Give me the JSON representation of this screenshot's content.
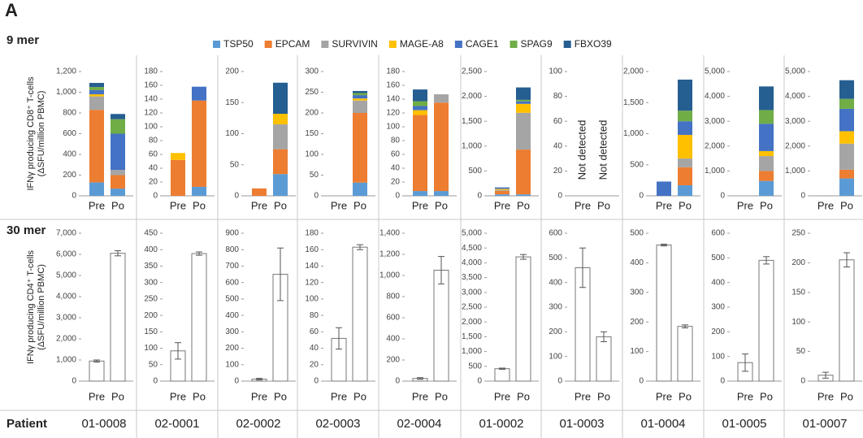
{
  "panel_label": "A",
  "rows": [
    "9 mer",
    "30 mer"
  ],
  "patient_label": "Patient",
  "patients": [
    "01-0008",
    "02-0001",
    "02-0002",
    "02-0003",
    "02-0004",
    "01-0002",
    "01-0003",
    "01-0004",
    "01-0005",
    "01-0007"
  ],
  "chart_data": [
    {
      "type": "stacked_bar",
      "y_label": [
        "IFNγ producing CD8⁺ T-cells",
        "(ΔSFU/million PBMC)"
      ],
      "categories": [
        "Pre",
        "Po"
      ],
      "ylim": [
        0,
        1200
      ],
      "yticks": [
        0,
        200,
        400,
        600,
        800,
        {
          "value": 1000,
          "label": "1,000"
        },
        {
          "value": 1200,
          "label": "1,200"
        }
      ],
      "series": [
        {
          "name": "TSP50",
          "color": "#5b9bd5",
          "values": [
            130,
            70
          ]
        },
        {
          "name": "EPCAM",
          "color": "#ed7d31",
          "values": [
            700,
            130
          ]
        },
        {
          "name": "SURVIVIN",
          "color": "#a5a5a5",
          "values": [
            130,
            50
          ]
        },
        {
          "name": "MAGE-A8",
          "color": "#ffc000",
          "values": [
            20,
            0
          ]
        },
        {
          "name": "CAGE1",
          "color": "#4472c4",
          "values": [
            40,
            350
          ]
        },
        {
          "name": "SPAG9",
          "color": "#70ad47",
          "values": [
            30,
            140
          ]
        },
        {
          "name": "FBXO39",
          "color": "#255e91",
          "values": [
            40,
            50
          ]
        }
      ]
    },
    {
      "type": "stacked_bar",
      "categories": [
        "Pre",
        "Po"
      ],
      "ylim": [
        0,
        180
      ],
      "yticks": [
        0,
        20,
        40,
        60,
        80,
        100,
        120,
        140,
        160,
        180
      ],
      "series": [
        {
          "values": [
            0,
            13
          ]
        },
        {
          "values": [
            52,
            125
          ]
        },
        {
          "values": [
            0,
            0
          ]
        },
        {
          "values": [
            10,
            0
          ]
        },
        {
          "values": [
            0,
            20
          ]
        },
        {
          "values": [
            0,
            0
          ]
        },
        {
          "values": [
            0,
            0
          ]
        }
      ]
    },
    {
      "type": "stacked_bar",
      "categories": [
        "Pre",
        "Po"
      ],
      "ylim": [
        0,
        200
      ],
      "yticks": [
        0,
        50,
        100,
        150,
        200
      ],
      "series": [
        {
          "values": [
            0,
            35
          ]
        },
        {
          "values": [
            12,
            40
          ]
        },
        {
          "values": [
            0,
            40
          ]
        },
        {
          "values": [
            0,
            17
          ]
        },
        {
          "values": [
            0,
            0
          ]
        },
        {
          "values": [
            0,
            0
          ]
        },
        {
          "values": [
            0,
            50
          ]
        }
      ]
    },
    {
      "type": "stacked_bar",
      "categories": [
        "Pre",
        "Po"
      ],
      "ylim": [
        0,
        300
      ],
      "yticks": [
        0,
        50,
        100,
        150,
        200,
        250,
        300
      ],
      "series": [
        {
          "values": [
            0,
            32
          ]
        },
        {
          "values": [
            0,
            168
          ]
        },
        {
          "values": [
            0,
            30
          ]
        },
        {
          "values": [
            0,
            5
          ]
        },
        {
          "values": [
            0,
            8
          ]
        },
        {
          "values": [
            0,
            5
          ]
        },
        {
          "values": [
            0,
            5
          ]
        }
      ]
    },
    {
      "type": "stacked_bar",
      "categories": [
        "Pre",
        "Po"
      ],
      "ylim": [
        0,
        180
      ],
      "yticks": [
        0,
        20,
        40,
        60,
        80,
        100,
        120,
        140,
        160,
        180
      ],
      "series": [
        {
          "values": [
            7,
            7
          ]
        },
        {
          "values": [
            110,
            128
          ]
        },
        {
          "values": [
            0,
            12
          ]
        },
        {
          "values": [
            7,
            0
          ]
        },
        {
          "values": [
            6,
            0
          ]
        },
        {
          "values": [
            7,
            0
          ]
        },
        {
          "values": [
            17,
            0
          ]
        }
      ]
    },
    {
      "type": "stacked_bar",
      "categories": [
        "Pre",
        "Po"
      ],
      "ylim": [
        0,
        2500
      ],
      "yticks": [
        0,
        500,
        {
          "value": 1000,
          "label": "1,000"
        },
        {
          "value": 1500,
          "label": "1,500"
        },
        {
          "value": 2000,
          "label": "2,000"
        },
        {
          "value": 2500,
          "label": "2,500"
        }
      ],
      "series": [
        {
          "values": [
            30,
            30
          ]
        },
        {
          "values": [
            70,
            900
          ]
        },
        {
          "values": [
            20,
            740
          ]
        },
        {
          "values": [
            20,
            180
          ]
        },
        {
          "values": [
            30,
            50
          ]
        },
        {
          "values": [
            0,
            30
          ]
        },
        {
          "values": [
            0,
            250
          ]
        }
      ]
    },
    {
      "type": "stacked_bar",
      "categories": [
        "Pre",
        "Po"
      ],
      "ylim": [
        0,
        100
      ],
      "yticks": [
        0,
        20,
        40,
        60,
        80,
        100
      ],
      "annotations": [
        "Not detected",
        "Not detected"
      ],
      "series": [
        {
          "values": [
            0,
            0
          ]
        },
        {
          "values": [
            0,
            0
          ]
        },
        {
          "values": [
            0,
            0
          ]
        },
        {
          "values": [
            0,
            0
          ]
        },
        {
          "values": [
            0,
            0
          ]
        },
        {
          "values": [
            0,
            0
          ]
        },
        {
          "values": [
            0,
            0
          ]
        }
      ]
    },
    {
      "type": "stacked_bar",
      "categories": [
        "Pre",
        "Po"
      ],
      "ylim": [
        0,
        2000
      ],
      "yticks": [
        0,
        500,
        {
          "value": 1000,
          "label": "1,000"
        },
        {
          "value": 1500,
          "label": "1,500"
        },
        {
          "value": 2000,
          "label": "2,000"
        }
      ],
      "series": [
        {
          "values": [
            0,
            170
          ]
        },
        {
          "values": [
            0,
            290
          ]
        },
        {
          "values": [
            0,
            140
          ]
        },
        {
          "values": [
            0,
            380
          ]
        },
        {
          "values": [
            230,
            220
          ]
        },
        {
          "values": [
            0,
            170
          ]
        },
        {
          "values": [
            0,
            500
          ]
        }
      ]
    },
    {
      "type": "stacked_bar",
      "categories": [
        "Pre",
        "Po"
      ],
      "ylim": [
        0,
        5000
      ],
      "yticks": [
        0,
        {
          "value": 1000,
          "label": "1,000"
        },
        {
          "value": 2000,
          "label": "2,000"
        },
        {
          "value": 3000,
          "label": "3,000"
        },
        {
          "value": 4000,
          "label": "4,000"
        },
        {
          "value": 5000,
          "label": "5,000"
        }
      ],
      "series": [
        {
          "values": [
            0,
            600
          ]
        },
        {
          "values": [
            0,
            400
          ]
        },
        {
          "values": [
            0,
            600
          ]
        },
        {
          "values": [
            0,
            200
          ]
        },
        {
          "values": [
            0,
            1100
          ]
        },
        {
          "values": [
            0,
            550
          ]
        },
        {
          "values": [
            0,
            950
          ]
        }
      ]
    },
    {
      "type": "stacked_bar",
      "categories": [
        "Pre",
        "Po"
      ],
      "ylim": [
        0,
        5000
      ],
      "yticks": [
        0,
        {
          "value": 1000,
          "label": "1,000"
        },
        {
          "value": 2000,
          "label": "2,000"
        },
        {
          "value": 3000,
          "label": "3,000"
        },
        {
          "value": 4000,
          "label": "4,000"
        },
        {
          "value": 5000,
          "label": "5,000"
        }
      ],
      "series": [
        {
          "values": [
            0,
            700
          ]
        },
        {
          "values": [
            0,
            350
          ]
        },
        {
          "values": [
            20,
            1050
          ]
        },
        {
          "values": [
            0,
            500
          ]
        },
        {
          "values": [
            0,
            900
          ]
        },
        {
          "values": [
            0,
            400
          ]
        },
        {
          "values": [
            0,
            750
          ]
        }
      ]
    },
    {
      "type": "bar_error",
      "y_label": [
        "IFNγ producing CD4⁺ T-cells",
        "(ΔSFU/million PBMC)"
      ],
      "categories": [
        "Pre",
        "Po"
      ],
      "ylim": [
        0,
        7000
      ],
      "yticks": [
        0,
        {
          "value": 1000,
          "label": "1,000"
        },
        {
          "value": 2000,
          "label": "2,000"
        },
        {
          "value": 3000,
          "label": "3,000"
        },
        {
          "value": 4000,
          "label": "4,000"
        },
        {
          "value": 5000,
          "label": "5,000"
        },
        {
          "value": 6000,
          "label": "6,000"
        },
        {
          "value": 7000,
          "label": "7,000"
        }
      ],
      "values": [
        950,
        6050
      ],
      "errors": [
        50,
        120
      ]
    },
    {
      "type": "bar_error",
      "categories": [
        "Pre",
        "Po"
      ],
      "ylim": [
        0,
        450
      ],
      "yticks": [
        0,
        50,
        100,
        150,
        200,
        250,
        300,
        350,
        400,
        450
      ],
      "values": [
        92,
        388
      ],
      "errors": [
        25,
        5
      ]
    },
    {
      "type": "bar_error",
      "categories": [
        "Pre",
        "Po"
      ],
      "ylim": [
        0,
        900
      ],
      "yticks": [
        0,
        100,
        200,
        300,
        400,
        500,
        600,
        700,
        800,
        900
      ],
      "values": [
        12,
        650
      ],
      "errors": [
        5,
        160
      ]
    },
    {
      "type": "bar_error",
      "categories": [
        "Pre",
        "Po"
      ],
      "ylim": [
        0,
        180
      ],
      "yticks": [
        0,
        20,
        40,
        60,
        80,
        100,
        120,
        140,
        160,
        180
      ],
      "values": [
        52,
        163
      ],
      "errors": [
        13,
        3
      ]
    },
    {
      "type": "bar_error",
      "categories": [
        "Pre",
        "Po"
      ],
      "ylim": [
        0,
        1400
      ],
      "yticks": [
        0,
        200,
        400,
        600,
        800,
        {
          "value": 1000,
          "label": "1,000"
        },
        {
          "value": 1200,
          "label": "1,200"
        },
        {
          "value": 1400,
          "label": "1,400"
        }
      ],
      "values": [
        25,
        1050
      ],
      "errors": [
        8,
        130
      ]
    },
    {
      "type": "bar_error",
      "categories": [
        "Pre",
        "Po"
      ],
      "ylim": [
        0,
        5000
      ],
      "yticks": [
        0,
        500,
        {
          "value": 1000,
          "label": "1,000"
        },
        {
          "value": 1500,
          "label": "1,500"
        },
        {
          "value": 2000,
          "label": "2,000"
        },
        {
          "value": 2500,
          "label": "2,500"
        },
        {
          "value": 3000,
          "label": "3,000"
        },
        {
          "value": 3500,
          "label": "3,500"
        },
        {
          "value": 4000,
          "label": "4,000"
        },
        {
          "value": 4500,
          "label": "4,500"
        },
        {
          "value": 5000,
          "label": "5,000"
        }
      ],
      "values": [
        420,
        4200
      ],
      "errors": [
        20,
        80
      ]
    },
    {
      "type": "bar_error",
      "categories": [
        "Pre",
        "Po"
      ],
      "ylim": [
        0,
        600
      ],
      "yticks": [
        0,
        100,
        200,
        300,
        400,
        500,
        600
      ],
      "values": [
        460,
        180
      ],
      "errors": [
        80,
        20
      ]
    },
    {
      "type": "bar_error",
      "categories": [
        "Pre",
        "Po"
      ],
      "ylim": [
        0,
        500
      ],
      "yticks": [
        0,
        100,
        200,
        300,
        400,
        500
      ],
      "values": [
        460,
        185
      ],
      "errors": [
        3,
        5
      ]
    },
    {
      "type": "bar_error",
      "categories": [
        "Pre",
        "Po"
      ],
      "ylim": [
        0,
        600
      ],
      "yticks": [
        0,
        100,
        200,
        300,
        400,
        500,
        600
      ],
      "values": [
        75,
        490
      ],
      "errors": [
        35,
        15
      ]
    },
    {
      "type": "bar_error",
      "categories": [
        "Pre",
        "Po"
      ],
      "ylim": [
        0,
        250
      ],
      "yticks": [
        0,
        50,
        100,
        150,
        200,
        250
      ],
      "values": [
        10,
        205
      ],
      "errors": [
        5,
        12
      ]
    }
  ]
}
